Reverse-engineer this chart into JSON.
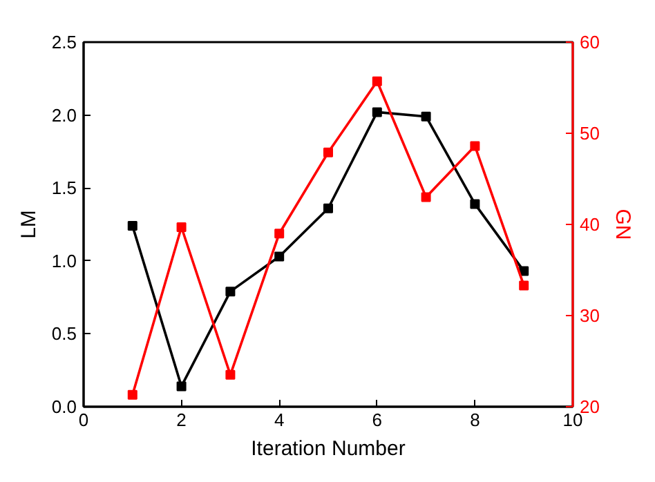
{
  "chart_data": {
    "type": "line",
    "xlabel": "Iteration Number",
    "ylabel": "LM",
    "y2label": "GN",
    "marker": "square",
    "line_style": "solid",
    "grid": false,
    "x": [
      1,
      2,
      3,
      4,
      5,
      6,
      7,
      8,
      9
    ],
    "xlim": [
      0,
      10
    ],
    "xticks": [
      0,
      2,
      4,
      6,
      8,
      10
    ],
    "ylim": [
      0,
      2.5
    ],
    "yticks": [
      {
        "value": 0,
        "label": "0.0"
      },
      {
        "value": 0.5,
        "label": "0.5"
      },
      {
        "value": 1,
        "label": "1.0"
      },
      {
        "value": 1.5,
        "label": "1.5"
      },
      {
        "value": 2,
        "label": "2.0"
      },
      {
        "value": 2.5,
        "label": "2.5"
      }
    ],
    "y2lim": [
      20,
      60
    ],
    "y2ticks": [
      20,
      30,
      40,
      50,
      60
    ],
    "series": [
      {
        "color": "#000000",
        "values": [
          1.24,
          0.14,
          0.79,
          1.03,
          1.36,
          2.02,
          1.99,
          1.39,
          0.93
        ]
      },
      {
        "color": "#ff0000",
        "axis": "y2",
        "values": [
          21.3,
          39.7,
          23.5,
          39.0,
          47.9,
          55.7,
          43.0,
          48.6,
          33.3
        ]
      }
    ]
  }
}
